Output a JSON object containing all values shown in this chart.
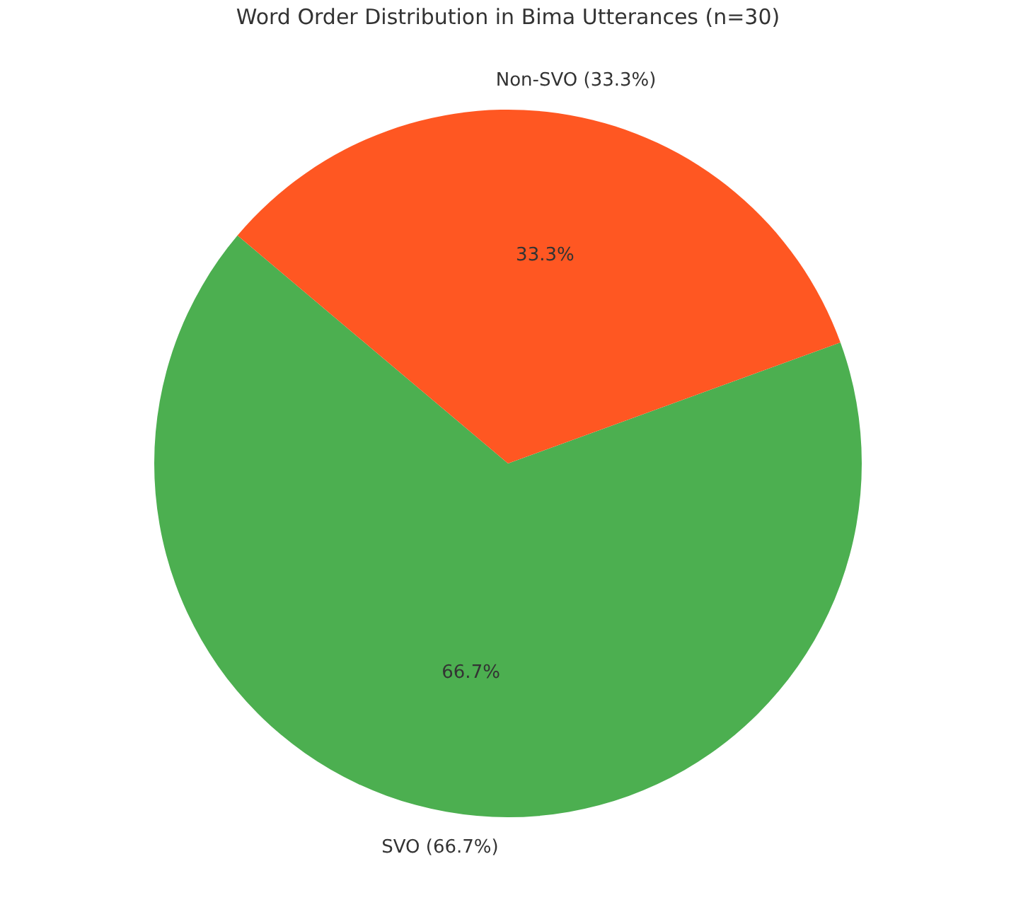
{
  "chart_data": {
    "type": "pie",
    "title": "Word Order Distribution in Bima Utterances (n=30)",
    "categories": [
      "SVO (66.7%)",
      "Non-SVO (33.3%)"
    ],
    "values": [
      66.7,
      33.3
    ],
    "value_labels": [
      "66.7%",
      "33.3%"
    ],
    "colors": [
      "#4caf50",
      "#ff5722"
    ],
    "legend": false
  }
}
